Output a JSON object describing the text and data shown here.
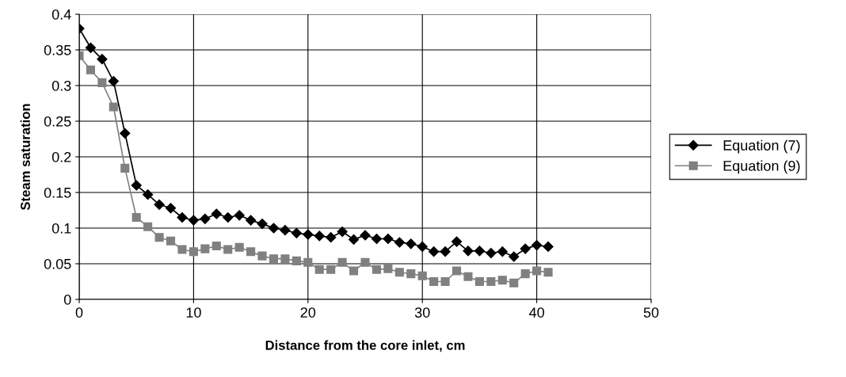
{
  "chart_data": {
    "type": "line",
    "xlabel": "Distance from the core inlet, cm",
    "ylabel": "Steam saturation",
    "x": [
      0,
      1,
      2,
      3,
      4,
      5,
      6,
      7,
      8,
      9,
      10,
      11,
      12,
      13,
      14,
      15,
      16,
      17,
      18,
      19,
      20,
      21,
      22,
      23,
      24,
      25,
      26,
      27,
      28,
      29,
      30,
      31,
      32,
      33,
      34,
      35,
      36,
      37,
      38,
      39,
      40,
      41
    ],
    "series": [
      {
        "name": "Equation (7)",
        "color": "#000000",
        "marker": "diamond",
        "values": [
          0.38,
          0.353,
          0.337,
          0.306,
          0.233,
          0.16,
          0.147,
          0.133,
          0.128,
          0.115,
          0.111,
          0.113,
          0.12,
          0.115,
          0.118,
          0.111,
          0.106,
          0.1,
          0.097,
          0.093,
          0.091,
          0.089,
          0.087,
          0.095,
          0.084,
          0.09,
          0.085,
          0.085,
          0.08,
          0.078,
          0.074,
          0.067,
          0.067,
          0.081,
          0.068,
          0.068,
          0.065,
          0.067,
          0.06,
          0.071,
          0.076,
          0.074
        ]
      },
      {
        "name": "Equation (9)",
        "color": "#808080",
        "marker": "square",
        "values": [
          0.342,
          0.322,
          0.304,
          0.27,
          0.184,
          0.115,
          0.102,
          0.087,
          0.082,
          0.07,
          0.067,
          0.071,
          0.075,
          0.07,
          0.073,
          0.067,
          0.061,
          0.057,
          0.057,
          0.054,
          0.052,
          0.042,
          0.042,
          0.052,
          0.04,
          0.052,
          0.042,
          0.043,
          0.038,
          0.036,
          0.033,
          0.025,
          0.025,
          0.04,
          0.032,
          0.025,
          0.025,
          0.027,
          0.023,
          0.036,
          0.04,
          0.038
        ]
      }
    ],
    "xlim": [
      0,
      50
    ],
    "xticks": [
      0,
      10,
      20,
      30,
      40,
      50
    ],
    "ylim": [
      0,
      0.4
    ],
    "yticks": [
      0,
      0.05,
      0.1,
      0.15,
      0.2,
      0.25,
      0.3,
      0.35,
      0.4
    ],
    "grid": true,
    "legend": "right",
    "line_style": "solid"
  }
}
